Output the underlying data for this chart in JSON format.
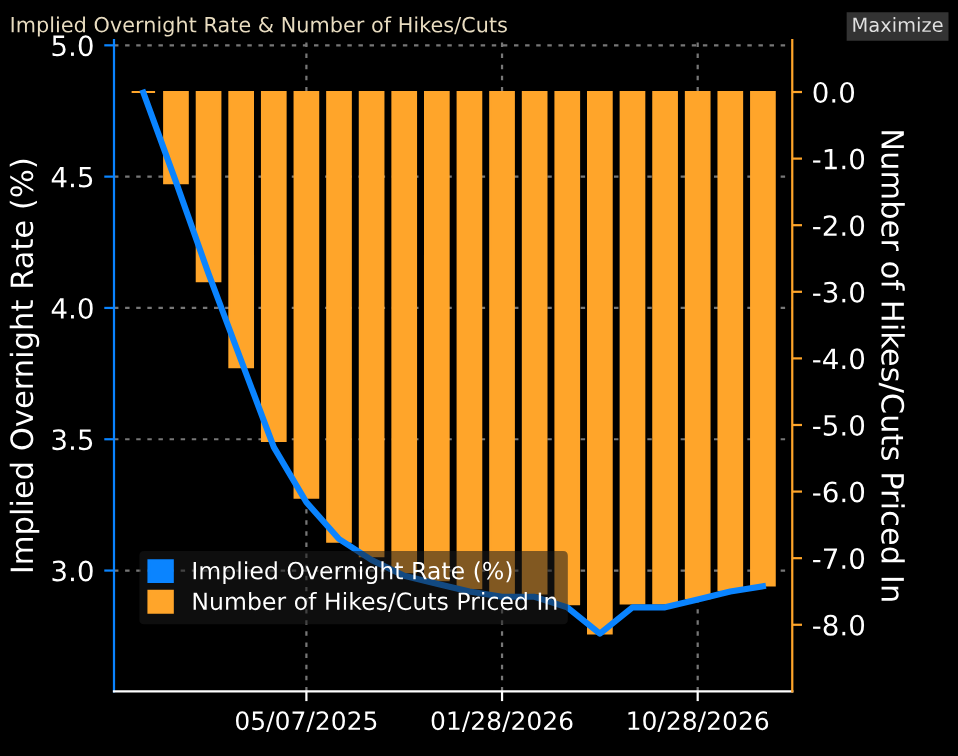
{
  "chart_data": {
    "type": "bar",
    "title": "Implied Overnight Rate & Number of Hikes/Cuts",
    "ylabel": "Implied Overnight Rate (%)",
    "y2label": "Number of Hikes/Cuts Priced In",
    "categories": [
      null,
      null,
      null,
      null,
      null,
      "05/07/2025",
      null,
      null,
      null,
      null,
      null,
      "01/28/2026",
      null,
      null,
      null,
      null,
      null,
      "10/28/2026",
      null,
      null
    ],
    "series": [
      {
        "name": "Implied Overnight Rate (%)",
        "type": "line",
        "color": "#0a84ff",
        "values": [
          4.82,
          4.48,
          4.13,
          3.8,
          3.47,
          3.26,
          3.12,
          3.04,
          2.98,
          2.95,
          2.92,
          2.9,
          2.9,
          2.86,
          2.76,
          2.86,
          2.86,
          2.89,
          2.92,
          2.94
        ]
      },
      {
        "name": "Number of Hikes/Cuts Priced In",
        "axis": "y2",
        "color": "#ffa52a",
        "values": [
          0,
          -1.37,
          -2.84,
          -4.13,
          -5.24,
          -6.09,
          -6.75,
          -6.97,
          -7.21,
          -7.33,
          -7.45,
          -7.53,
          -7.53,
          -7.69,
          -8.13,
          -7.68,
          -7.68,
          -7.6,
          -7.48,
          -7.41
        ]
      }
    ],
    "ylim": [
      2.54,
      5.02
    ],
    "yticks": [
      {
        "value": 3,
        "label": "3.0"
      },
      {
        "value": 3.5,
        "label": "3.5"
      },
      {
        "value": 4,
        "label": "4.0"
      },
      {
        "value": 4.5,
        "label": "4.5"
      },
      {
        "value": 5,
        "label": "5.0"
      }
    ],
    "y2lim": [
      -9.0,
      0.78
    ],
    "y2ticks": [
      {
        "value": 0,
        "label": "0.0"
      },
      {
        "value": -1,
        "label": "-1.0"
      },
      {
        "value": -2,
        "label": "-2.0"
      },
      {
        "value": -3,
        "label": "-3.0"
      },
      {
        "value": -4,
        "label": "-4.0"
      },
      {
        "value": -5,
        "label": "-5.0"
      },
      {
        "value": -6,
        "label": "-6.0"
      },
      {
        "value": -7,
        "label": "-7.0"
      },
      {
        "value": -8,
        "label": "-8.0"
      }
    ],
    "grid": true,
    "legend": "bottom left",
    "marker": "none",
    "line_style": "solid",
    "annotations": [
      "Maximize"
    ]
  }
}
